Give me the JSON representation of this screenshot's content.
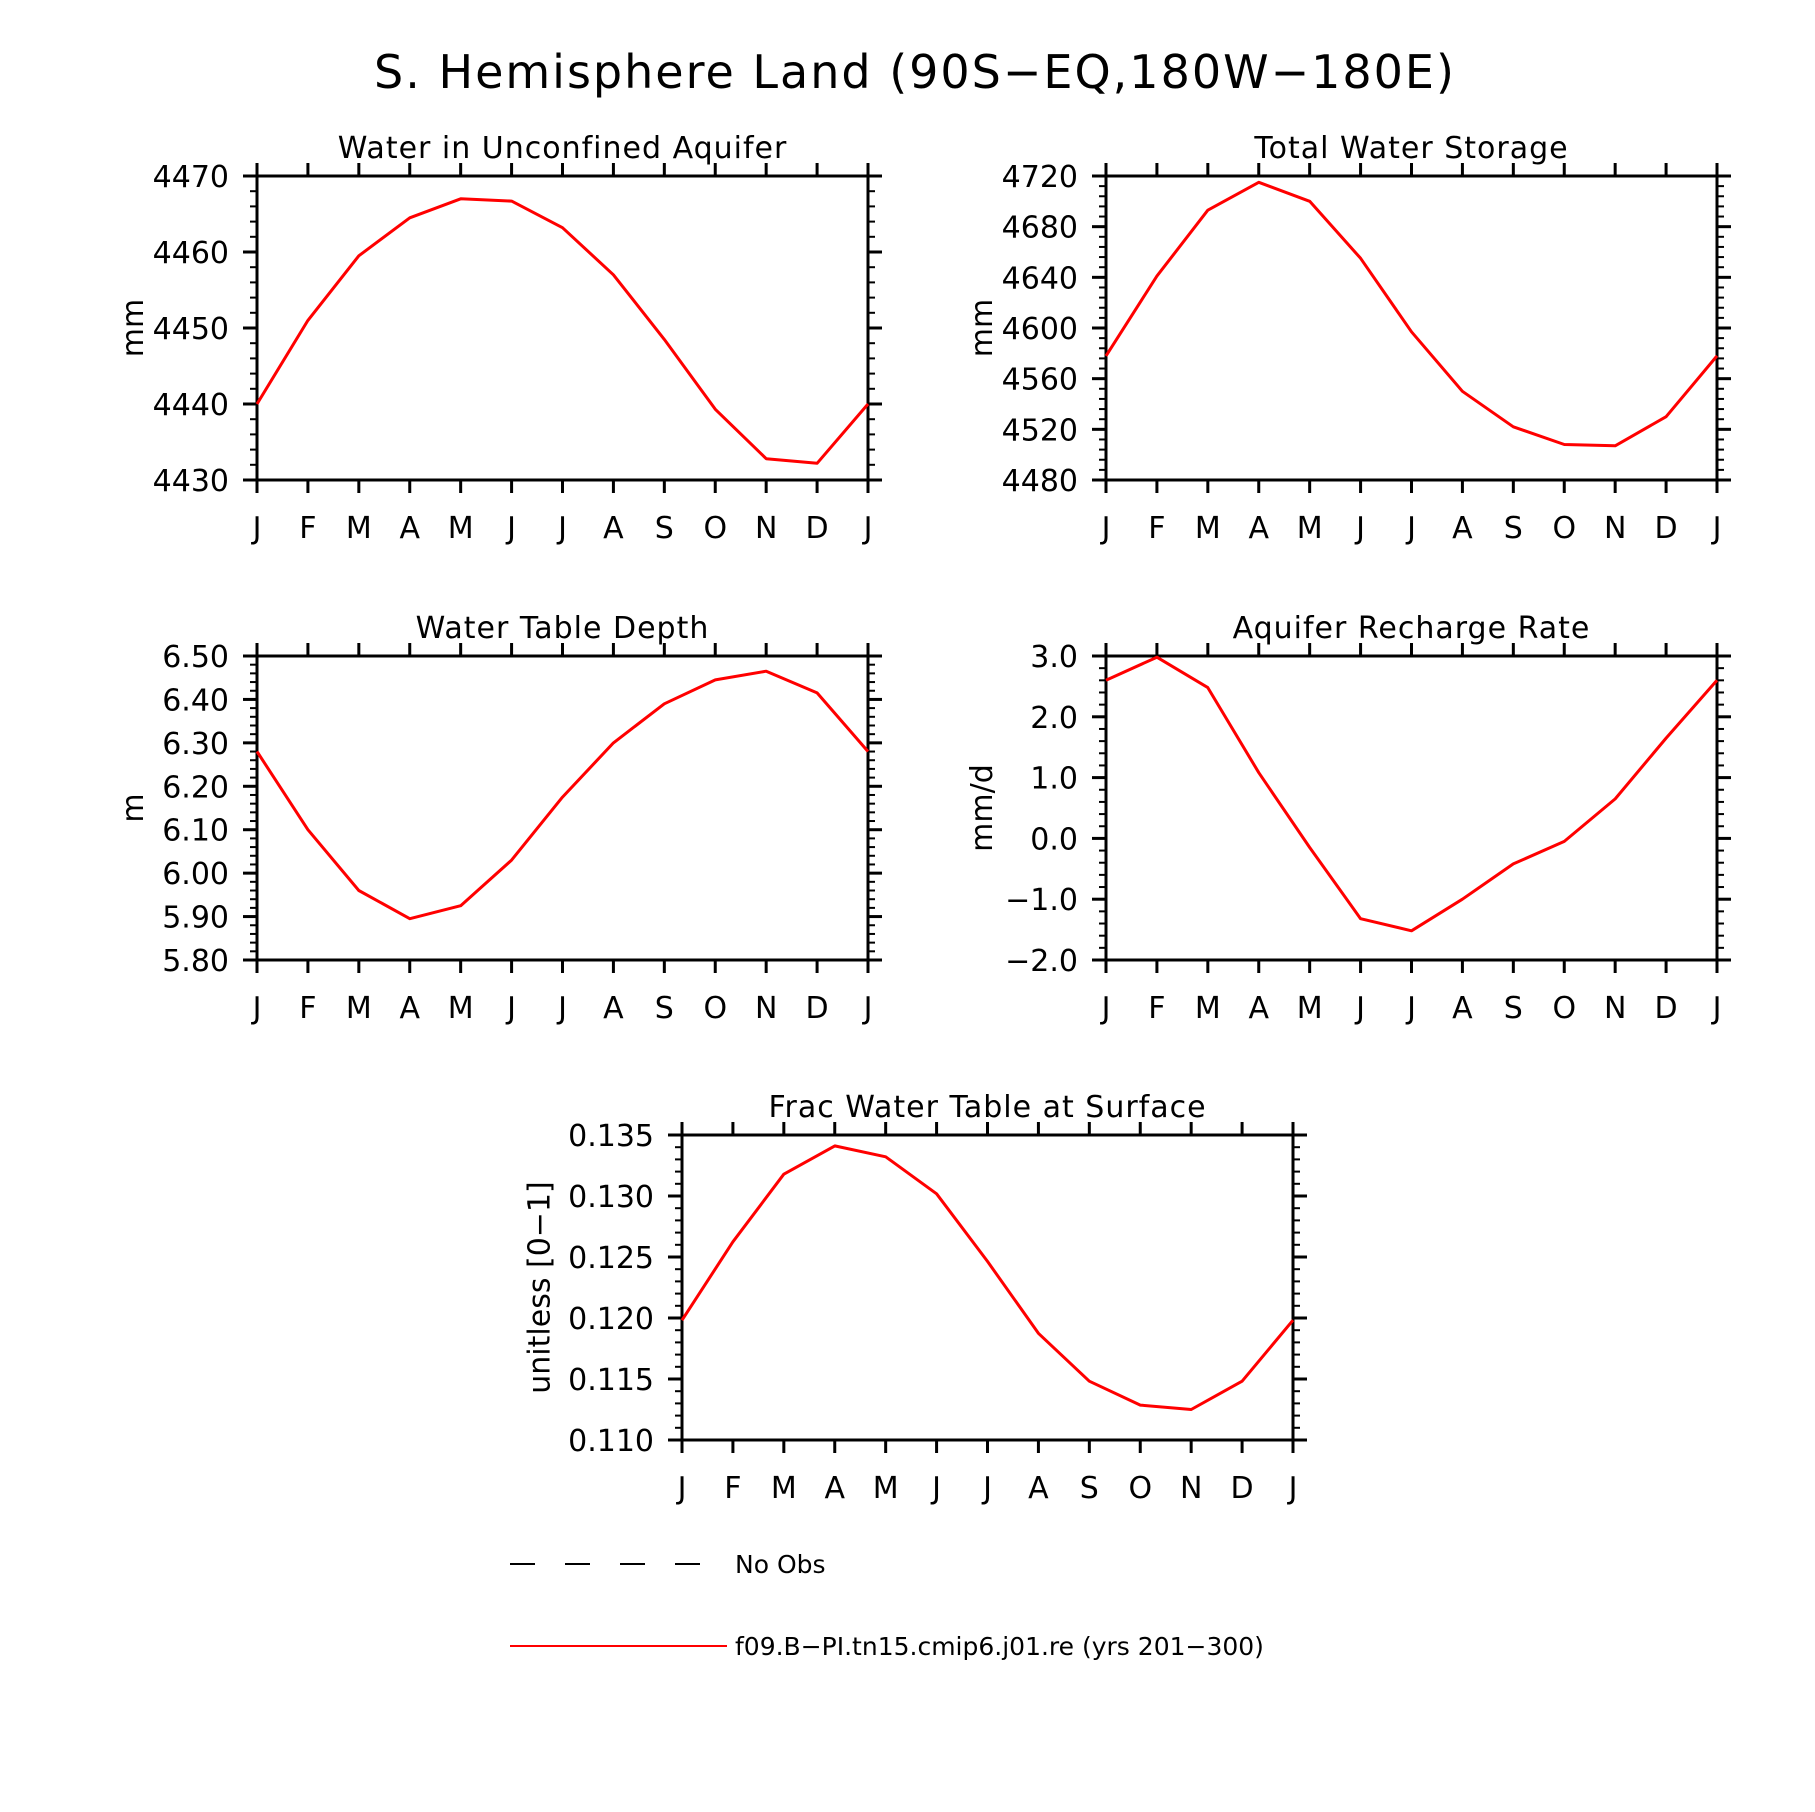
{
  "figure": {
    "title": "S. Hemisphere Land (90S−EQ,180W−180E)",
    "legend": [
      {
        "label": "No Obs",
        "style": "dashed",
        "color": "#000000"
      },
      {
        "label": "f09.B−PI.tn15.cmip6.j01.re (yrs 201−300)",
        "style": "solid",
        "color": "#ff0000"
      }
    ]
  },
  "chart_data": [
    {
      "type": "line",
      "title": "Water in Unconfined Aquifer",
      "ylabel": "mm",
      "categories": [
        "J",
        "F",
        "M",
        "A",
        "M",
        "J",
        "J",
        "A",
        "S",
        "O",
        "N",
        "D",
        "J"
      ],
      "ylim": [
        4430,
        4470
      ],
      "yticks": [
        "4430",
        "4440",
        "4450",
        "4460",
        "4470"
      ],
      "series": [
        {
          "color": "#ff0000",
          "values": [
            4440.0,
            4451.0,
            4459.5,
            4464.5,
            4467.0,
            4466.7,
            4463.2,
            4457.0,
            4448.5,
            4439.3,
            4432.8,
            4432.2,
            4440.0
          ]
        }
      ]
    },
    {
      "type": "line",
      "title": "Total Water Storage",
      "ylabel": "mm",
      "categories": [
        "J",
        "F",
        "M",
        "A",
        "M",
        "J",
        "J",
        "A",
        "S",
        "O",
        "N",
        "D",
        "J"
      ],
      "ylim": [
        4480,
        4720
      ],
      "yticks": [
        "4480",
        "4520",
        "4560",
        "4600",
        "4640",
        "4680",
        "4720"
      ],
      "series": [
        {
          "color": "#ff0000",
          "values": [
            4578,
            4641,
            4693,
            4715,
            4700,
            4655,
            4597,
            4550,
            4522,
            4508,
            4507,
            4530,
            4578
          ]
        }
      ]
    },
    {
      "type": "line",
      "title": "Water Table Depth",
      "ylabel": "m",
      "categories": [
        "J",
        "F",
        "M",
        "A",
        "M",
        "J",
        "J",
        "A",
        "S",
        "O",
        "N",
        "D",
        "J"
      ],
      "ylim": [
        5.8,
        6.5
      ],
      "yticks": [
        "5.80",
        "5.90",
        "6.00",
        "6.10",
        "6.20",
        "6.30",
        "6.40",
        "6.50"
      ],
      "series": [
        {
          "color": "#ff0000",
          "values": [
            6.28,
            6.1,
            5.96,
            5.895,
            5.925,
            6.03,
            6.175,
            6.3,
            6.39,
            6.445,
            6.465,
            6.415,
            6.28
          ]
        }
      ]
    },
    {
      "type": "line",
      "title": "Aquifer Recharge Rate",
      "ylabel": "mm/d",
      "categories": [
        "J",
        "F",
        "M",
        "A",
        "M",
        "J",
        "J",
        "A",
        "S",
        "O",
        "N",
        "D",
        "J"
      ],
      "ylim": [
        -2.0,
        3.0
      ],
      "yticks": [
        "−2.0",
        "−1.0",
        "0.0",
        "1.0",
        "2.0",
        "3.0"
      ],
      "series": [
        {
          "color": "#ff0000",
          "values": [
            2.6,
            2.98,
            2.48,
            1.08,
            -0.15,
            -1.32,
            -1.52,
            -1.0,
            -0.42,
            -0.05,
            0.65,
            1.65,
            2.6
          ]
        }
      ]
    },
    {
      "type": "line",
      "title": "Frac Water Table at Surface",
      "ylabel": "unitless [0−1]",
      "categories": [
        "J",
        "F",
        "M",
        "A",
        "M",
        "J",
        "J",
        "A",
        "S",
        "O",
        "N",
        "D",
        "J"
      ],
      "ylim": [
        0.108,
        0.136
      ],
      "yticks": [
        "0.110",
        "0.115",
        "0.120",
        "0.125",
        "0.130",
        "0.135"
      ],
      "series": [
        {
          "color": "#ff0000",
          "values": [
            0.119,
            0.1262,
            0.1324,
            0.135,
            0.134,
            0.1306,
            0.1244,
            0.1178,
            0.1134,
            0.1112,
            0.1108,
            0.1134,
            0.119
          ]
        }
      ]
    }
  ]
}
